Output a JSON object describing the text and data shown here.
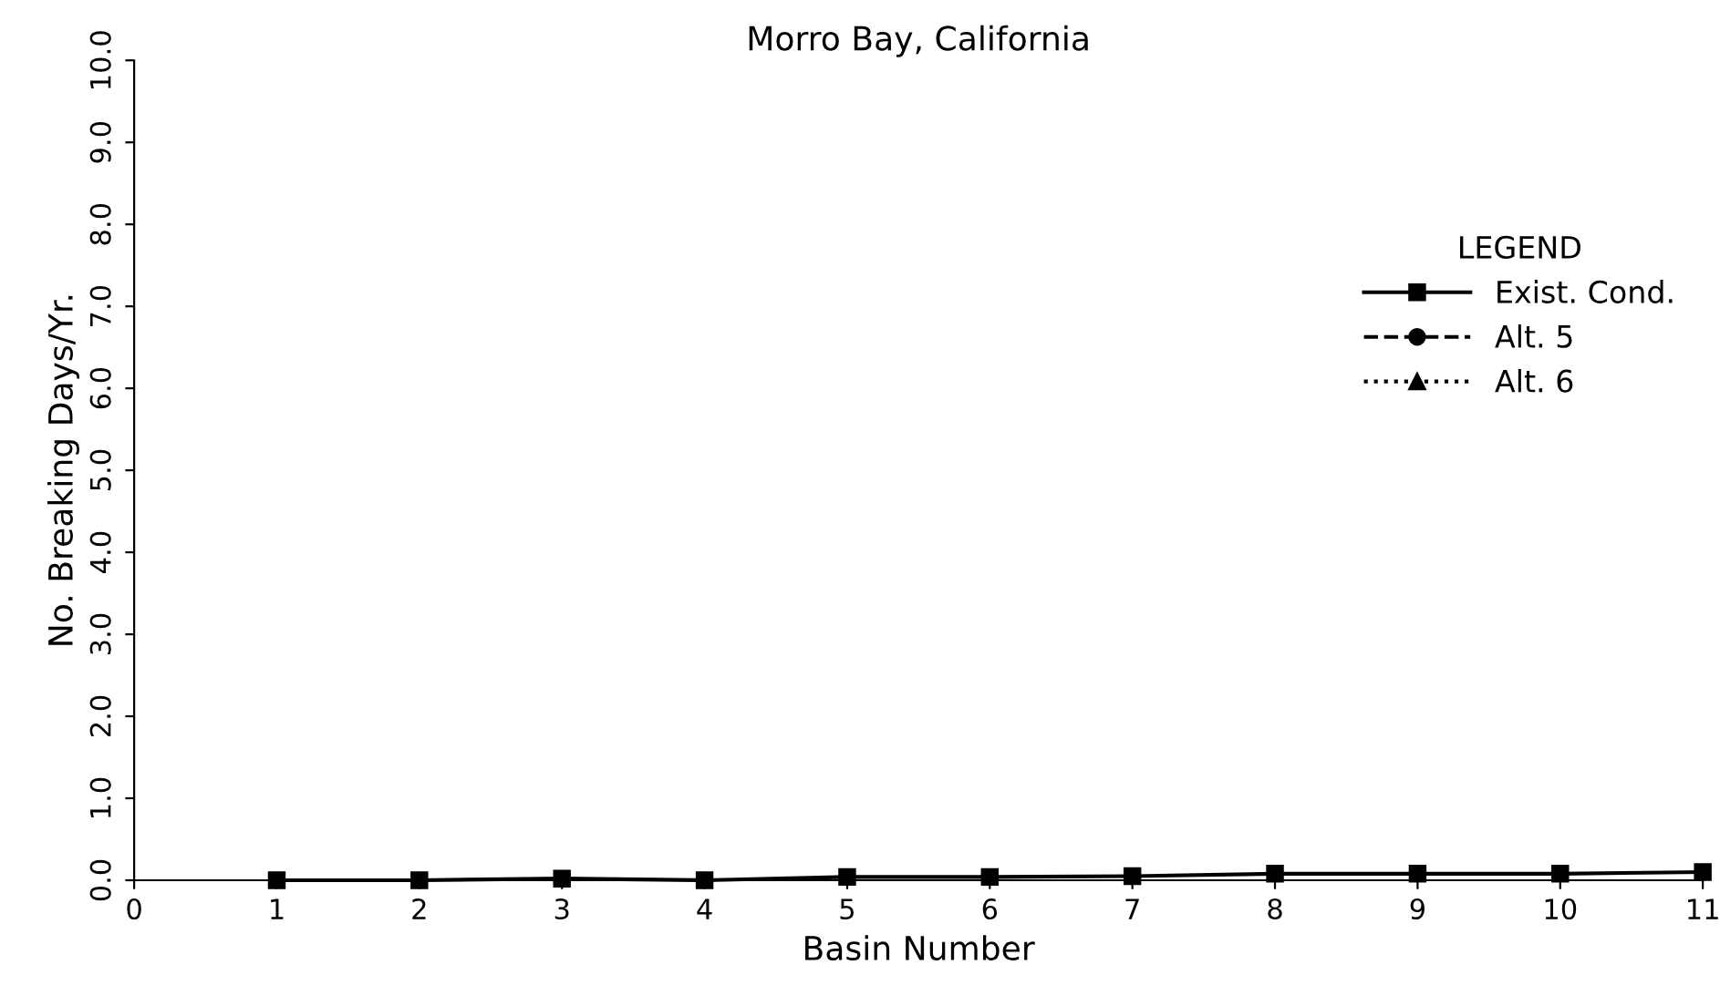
{
  "chart_data": {
    "type": "line",
    "title": "Morro Bay, California",
    "xlabel": "Basin Number",
    "ylabel": "No. Breaking Days/Yr.",
    "x": [
      1,
      2,
      3,
      4,
      5,
      6,
      7,
      8,
      9,
      10,
      11
    ],
    "series": [
      {
        "name": "Exist. Cond.",
        "color": "#000000",
        "marker": "square",
        "line_style": "solid",
        "values": [
          0.0,
          0.0,
          0.02,
          0.0,
          0.04,
          0.04,
          0.05,
          0.08,
          0.08,
          0.08,
          0.1
        ]
      },
      {
        "name": "Alt. 5",
        "color": "#000000",
        "marker": "circle",
        "line_style": "dashed",
        "values": [
          null,
          null,
          null,
          null,
          null,
          null,
          null,
          null,
          null,
          null,
          null
        ]
      },
      {
        "name": "Alt. 6",
        "color": "#000000",
        "marker": "triangle",
        "line_style": "dotted",
        "values": [
          null,
          null,
          null,
          null,
          null,
          null,
          null,
          null,
          null,
          null,
          null
        ]
      }
    ],
    "legend_title": "LEGEND",
    "legend": "top right",
    "grid": false,
    "xlim": [
      0,
      11
    ],
    "xticks": [
      0,
      1,
      2,
      3,
      4,
      5,
      6,
      7,
      8,
      9,
      10,
      11
    ],
    "ylim": [
      0,
      10
    ],
    "yticks": [
      {
        "value": 0,
        "label": "0.0"
      },
      {
        "value": 1,
        "label": "1.0"
      },
      {
        "value": 2,
        "label": "2.0"
      },
      {
        "value": 3,
        "label": "3.0"
      },
      {
        "value": 4,
        "label": "4.0"
      },
      {
        "value": 5,
        "label": "5.0"
      },
      {
        "value": 6,
        "label": "6.0"
      },
      {
        "value": 7,
        "label": "7.0"
      },
      {
        "value": 8,
        "label": "8.0"
      },
      {
        "value": 9,
        "label": "9.0"
      },
      {
        "value": 10,
        "label": "10.0"
      }
    ]
  }
}
